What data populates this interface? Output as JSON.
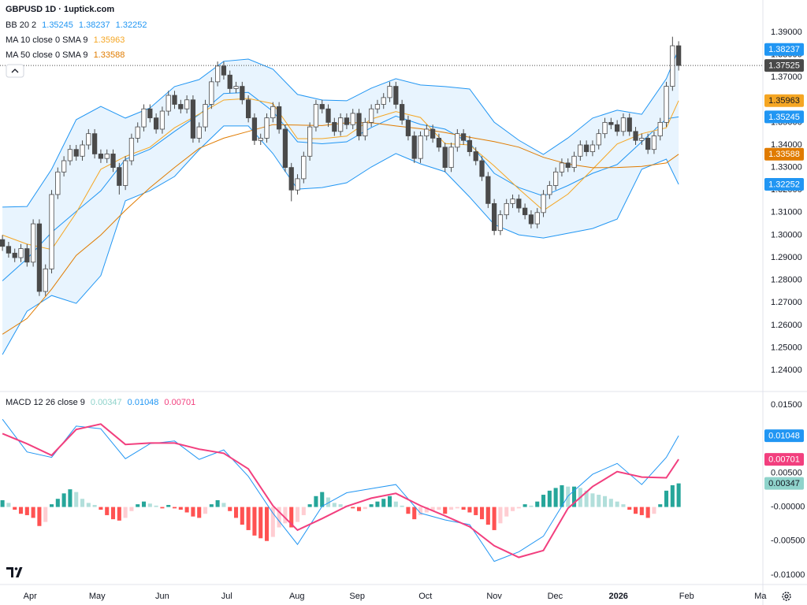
{
  "chart_data": [
    {
      "type": "candlestick",
      "title": "GBPUSD 1D · 1uptick.com",
      "open": [
        1.298,
        1.295,
        1.292,
        1.29,
        1.294,
        1.288,
        1.305,
        1.275,
        1.285,
        1.318,
        1.328,
        1.333,
        1.338,
        1.335,
        1.34,
        1.345,
        1.336,
        1.334,
        1.336,
        1.33,
        1.322,
        1.333,
        1.343,
        1.348,
        1.356,
        1.352,
        1.347,
        1.355,
        1.362,
        1.358,
        1.356,
        1.36,
        1.343,
        1.348,
        1.358,
        1.368,
        1.375,
        1.371,
        1.365,
        1.366,
        1.36,
        1.352,
        1.342,
        1.343,
        1.352,
        1.357,
        1.347,
        1.33,
        1.32,
        1.325,
        1.335,
        1.348,
        1.358,
        1.356,
        1.35,
        1.346,
        1.352,
        1.349,
        1.354,
        1.344,
        1.35,
        1.356,
        1.358,
        1.361,
        1.366,
        1.358,
        1.351,
        1.344,
        1.334,
        1.344,
        1.347,
        1.343,
        1.339,
        1.33,
        1.339,
        1.345,
        1.342,
        1.337,
        1.333,
        1.326,
        1.314,
        1.302,
        1.309,
        1.314,
        1.316,
        1.312,
        1.309,
        1.305,
        1.31,
        1.318,
        1.322,
        1.328,
        1.332,
        1.33,
        1.335,
        1.34,
        1.337,
        1.34,
        1.345,
        1.35,
        1.349,
        1.346,
        1.352,
        1.346,
        1.342,
        1.343,
        1.338,
        1.344,
        1.35,
        1.366,
        1.384
      ],
      "high": [
        1.3,
        1.297,
        1.294,
        1.296,
        1.296,
        1.307,
        1.307,
        1.287,
        1.32,
        1.33,
        1.335,
        1.34,
        1.34,
        1.342,
        1.347,
        1.347,
        1.338,
        1.338,
        1.338,
        1.332,
        1.335,
        1.345,
        1.35,
        1.358,
        1.358,
        1.354,
        1.357,
        1.364,
        1.364,
        1.36,
        1.362,
        1.362,
        1.35,
        1.36,
        1.37,
        1.377,
        1.377,
        1.373,
        1.368,
        1.368,
        1.362,
        1.354,
        1.345,
        1.354,
        1.359,
        1.359,
        1.349,
        1.332,
        1.327,
        1.337,
        1.35,
        1.36,
        1.36,
        1.358,
        1.352,
        1.354,
        1.354,
        1.356,
        1.356,
        1.352,
        1.358,
        1.36,
        1.363,
        1.368,
        1.368,
        1.36,
        1.353,
        1.346,
        1.346,
        1.349,
        1.349,
        1.345,
        1.341,
        1.341,
        1.347,
        1.347,
        1.344,
        1.339,
        1.335,
        1.328,
        1.316,
        1.311,
        1.316,
        1.318,
        1.318,
        1.314,
        1.311,
        1.312,
        1.32,
        1.324,
        1.33,
        1.334,
        1.334,
        1.337,
        1.342,
        1.342,
        1.342,
        1.347,
        1.352,
        1.352,
        1.351,
        1.354,
        1.354,
        1.348,
        1.345,
        1.345,
        1.346,
        1.352,
        1.368,
        1.388,
        1.386
      ],
      "low": [
        1.293,
        1.29,
        1.288,
        1.288,
        1.286,
        1.286,
        1.273,
        1.273,
        1.283,
        1.316,
        1.326,
        1.331,
        1.333,
        1.333,
        1.338,
        1.334,
        1.332,
        1.332,
        1.328,
        1.318,
        1.32,
        1.331,
        1.341,
        1.346,
        1.35,
        1.345,
        1.345,
        1.353,
        1.356,
        1.354,
        1.354,
        1.341,
        1.341,
        1.346,
        1.356,
        1.366,
        1.369,
        1.363,
        1.363,
        1.358,
        1.35,
        1.34,
        1.34,
        1.341,
        1.35,
        1.345,
        1.328,
        1.315,
        1.318,
        1.323,
        1.333,
        1.346,
        1.354,
        1.348,
        1.344,
        1.344,
        1.347,
        1.347,
        1.342,
        1.342,
        1.348,
        1.354,
        1.356,
        1.359,
        1.356,
        1.349,
        1.342,
        1.332,
        1.332,
        1.342,
        1.341,
        1.337,
        1.328,
        1.328,
        1.337,
        1.34,
        1.335,
        1.331,
        1.324,
        1.312,
        1.3,
        1.3,
        1.307,
        1.312,
        1.31,
        1.307,
        1.303,
        1.303,
        1.308,
        1.316,
        1.32,
        1.326,
        1.328,
        1.328,
        1.333,
        1.335,
        1.335,
        1.338,
        1.343,
        1.347,
        1.344,
        1.344,
        1.344,
        1.34,
        1.34,
        1.336,
        1.336,
        1.342,
        1.348,
        1.364,
        1.373
      ],
      "close": [
        1.295,
        1.292,
        1.29,
        1.294,
        1.288,
        1.305,
        1.275,
        1.285,
        1.318,
        1.328,
        1.333,
        1.338,
        1.335,
        1.34,
        1.345,
        1.336,
        1.334,
        1.336,
        1.33,
        1.322,
        1.333,
        1.343,
        1.348,
        1.356,
        1.352,
        1.347,
        1.355,
        1.362,
        1.358,
        1.356,
        1.36,
        1.343,
        1.348,
        1.358,
        1.368,
        1.375,
        1.371,
        1.365,
        1.366,
        1.36,
        1.352,
        1.342,
        1.343,
        1.352,
        1.357,
        1.347,
        1.33,
        1.32,
        1.325,
        1.335,
        1.348,
        1.358,
        1.356,
        1.35,
        1.346,
        1.352,
        1.349,
        1.354,
        1.344,
        1.35,
        1.356,
        1.358,
        1.361,
        1.366,
        1.358,
        1.351,
        1.344,
        1.334,
        1.344,
        1.347,
        1.343,
        1.339,
        1.33,
        1.339,
        1.345,
        1.342,
        1.337,
        1.333,
        1.326,
        1.314,
        1.302,
        1.309,
        1.314,
        1.316,
        1.312,
        1.309,
        1.305,
        1.31,
        1.318,
        1.322,
        1.328,
        1.332,
        1.33,
        1.335,
        1.34,
        1.337,
        1.34,
        1.345,
        1.35,
        1.349,
        1.346,
        1.352,
        1.346,
        1.342,
        1.343,
        1.338,
        1.344,
        1.35,
        1.366,
        1.384,
        1.37525
      ],
      "up_color": "#ffffff",
      "down_color": "#4a4a4a",
      "wick_color": "#4a4a4a",
      "last_price": 1.37525,
      "overlays": [
        {
          "name": "BB 20 2",
          "type": "band",
          "color": "#2196f3",
          "fill": "rgba(33,150,243,0.10)",
          "x": [
            0,
            4,
            8,
            12,
            16,
            20,
            24,
            28,
            32,
            36,
            40,
            44,
            48,
            52,
            56,
            60,
            64,
            68,
            72,
            76,
            80,
            84,
            88,
            92,
            96,
            100,
            104,
            108,
            110
          ],
          "basis": [
            1.2797,
            1.2895,
            1.3012,
            1.3105,
            1.3196,
            1.3336,
            1.3381,
            1.346,
            1.3535,
            1.3628,
            1.3633,
            1.3549,
            1.3414,
            1.3405,
            1.3414,
            1.3477,
            1.3528,
            1.3491,
            1.347,
            1.3409,
            1.3274,
            1.3211,
            1.3173,
            1.322,
            1.3274,
            1.3313,
            1.3414,
            1.3516,
            1.35245
          ],
          "upper": [
            1.3124,
            1.3127,
            1.3292,
            1.3512,
            1.3571,
            1.3519,
            1.3564,
            1.3659,
            1.369,
            1.3771,
            1.3781,
            1.3736,
            1.3624,
            1.3599,
            1.3596,
            1.3652,
            1.3694,
            1.3666,
            1.3659,
            1.3648,
            1.3501,
            1.3421,
            1.3358,
            1.3431,
            1.3519,
            1.3554,
            1.3536,
            1.3694,
            1.38237
          ],
          "lower": [
            1.247,
            1.2662,
            1.2732,
            1.2697,
            1.282,
            1.3152,
            1.3197,
            1.326,
            1.3379,
            1.3484,
            1.3484,
            1.3362,
            1.3204,
            1.3211,
            1.3232,
            1.3302,
            1.3362,
            1.3316,
            1.3281,
            1.3169,
            1.3047,
            1.3001,
            1.2987,
            1.3008,
            1.3029,
            1.3071,
            1.3292,
            1.3337,
            1.32252
          ],
          "legend_values": [
            1.35245,
            1.38237,
            1.32252
          ]
        },
        {
          "name": "MA 10 close 0 SMA 9",
          "type": "line",
          "color": "#f5a623",
          "x": [
            0,
            4,
            8,
            12,
            16,
            20,
            24,
            28,
            32,
            36,
            40,
            44,
            48,
            52,
            56,
            60,
            64,
            68,
            72,
            76,
            80,
            84,
            88,
            92,
            96,
            100,
            104,
            108,
            110
          ],
          "values": [
            1.3,
            1.296,
            1.2936,
            1.3099,
            1.3292,
            1.3349,
            1.339,
            1.3476,
            1.3537,
            1.3599,
            1.3606,
            1.3583,
            1.3428,
            1.3428,
            1.3439,
            1.3515,
            1.3548,
            1.3522,
            1.3406,
            1.34,
            1.3307,
            1.3205,
            1.3109,
            1.3182,
            1.3292,
            1.3404,
            1.345,
            1.3476,
            1.35963
          ],
          "legend_values": [
            1.35963
          ]
        },
        {
          "name": "MA 50 close 0 SMA 9",
          "type": "line",
          "color": "#e07b00",
          "x": [
            0,
            4,
            8,
            12,
            16,
            20,
            24,
            28,
            32,
            36,
            40,
            44,
            48,
            52,
            56,
            60,
            64,
            68,
            72,
            76,
            80,
            84,
            88,
            92,
            96,
            100,
            104,
            108,
            110
          ],
          "values": [
            1.256,
            1.263,
            1.276,
            1.291,
            1.3,
            1.311,
            1.321,
            1.33,
            1.3385,
            1.343,
            1.346,
            1.349,
            1.3488,
            1.3486,
            1.3498,
            1.3499,
            1.3484,
            1.3472,
            1.3455,
            1.3434,
            1.3415,
            1.339,
            1.3345,
            1.3315,
            1.3299,
            1.33,
            1.3305,
            1.332,
            1.33588
          ],
          "legend_values": [
            1.33588
          ]
        }
      ],
      "xlim": [
        -0.4,
        123.7
      ],
      "ylim": [
        1.2306,
        1.4043
      ],
      "yticks": [
        {
          "value": 1.24,
          "label": "1.24000"
        },
        {
          "value": 1.25,
          "label": "1.25000"
        },
        {
          "value": 1.26,
          "label": "1.26000"
        },
        {
          "value": 1.27,
          "label": "1.27000"
        },
        {
          "value": 1.28,
          "label": "1.28000"
        },
        {
          "value": 1.29,
          "label": "1.29000"
        },
        {
          "value": 1.3,
          "label": "1.30000"
        },
        {
          "value": 1.31,
          "label": "1.31000"
        },
        {
          "value": 1.32,
          "label": "1.32000"
        },
        {
          "value": 1.33,
          "label": "1.33000"
        },
        {
          "value": 1.34,
          "label": "1.34000"
        },
        {
          "value": 1.35,
          "label": "1.35000"
        },
        {
          "value": 1.36,
          "label": "1.36000"
        },
        {
          "value": 1.37,
          "label": "1.37000"
        },
        {
          "value": 1.38,
          "label": "1.38000"
        },
        {
          "value": 1.39,
          "label": "1.39000"
        }
      ],
      "grid": false
    },
    {
      "type": "macd",
      "title": "MACD 12 26 close 9",
      "x": [
        0,
        4,
        8,
        12,
        16,
        20,
        24,
        28,
        32,
        36,
        40,
        44,
        48,
        52,
        56,
        60,
        64,
        68,
        72,
        76,
        80,
        84,
        88,
        92,
        96,
        100,
        104,
        108,
        110
      ],
      "macd": {
        "color": "#2196f3",
        "values": [
          0.0129,
          0.0081,
          0.0073,
          0.0119,
          0.0115,
          0.0071,
          0.0093,
          0.0097,
          0.007,
          0.0084,
          0.0045,
          -0.0009,
          -0.0055,
          0.0001,
          0.0021,
          0.0027,
          0.0033,
          -0.0009,
          -0.0019,
          -0.0026,
          -0.008,
          -0.0066,
          -0.0043,
          0.0016,
          0.0048,
          0.0064,
          0.0033,
          0.0073,
          0.01048
        ]
      },
      "signal": {
        "color": "#f23f7e",
        "values": [
          0.0108,
          0.0093,
          0.0076,
          0.0114,
          0.0122,
          0.0092,
          0.0094,
          0.0094,
          0.0085,
          0.0079,
          0.0056,
          0.0002,
          -0.0034,
          -0.0017,
          0.0001,
          0.0013,
          0.002,
          0.0002,
          -0.0013,
          -0.0029,
          -0.0057,
          -0.0074,
          -0.0064,
          -0.0002,
          0.003,
          0.0052,
          0.0044,
          0.0043,
          0.00701
        ]
      },
      "histogram": {
        "color_rising_above": "#26a69a",
        "color_falling_above": "#b2dfdb",
        "color_rising_below": "#ffcdd2",
        "color_falling_below": "#ff5252",
        "values": [
          0.001,
          0.0006,
          -0.0004,
          -0.001,
          -0.0012,
          -0.0016,
          -0.0028,
          -0.0022,
          0.0004,
          0.0012,
          0.002,
          0.0026,
          0.0022,
          0.0012,
          0.0006,
          0.0003,
          -0.0004,
          -0.0012,
          -0.0018,
          -0.002,
          -0.0016,
          -0.0006,
          0.0004,
          0.0008,
          0.0005,
          0.0002,
          -0.0002,
          0.0003,
          -0.0002,
          -0.0004,
          -0.0008,
          -0.0014,
          -0.0016,
          -0.001,
          0.0004,
          0.001,
          0.0006,
          -0.0006,
          -0.0016,
          -0.0026,
          -0.0034,
          -0.0042,
          -0.0046,
          -0.005,
          -0.0044,
          -0.003,
          -0.0024,
          -0.003,
          -0.0022,
          -0.0012,
          0.0004,
          0.0016,
          0.0022,
          0.0014,
          0.0006,
          0.0004,
          0.0002,
          -0.0002,
          -0.0006,
          -0.0003,
          0.0004,
          0.0008,
          0.0012,
          0.0016,
          0.0008,
          0.0002,
          -0.001,
          -0.0018,
          -0.0012,
          -0.0008,
          -0.0006,
          -0.0004,
          -0.001,
          -0.0004,
          -0.0002,
          -0.0004,
          -0.0008,
          -0.0012,
          -0.0018,
          -0.0026,
          -0.0034,
          -0.0024,
          -0.0014,
          -0.0006,
          -0.0002,
          0.0004,
          0.0002,
          0.0008,
          0.0018,
          0.0024,
          0.0028,
          0.0032,
          0.003,
          0.003,
          0.0028,
          0.0024,
          0.002,
          0.0018,
          0.0016,
          0.0012,
          0.0008,
          0.0004,
          -0.0004,
          -0.001,
          -0.0012,
          -0.0016,
          -0.001,
          0.0004,
          0.0024,
          0.0032,
          0.00347
        ]
      },
      "legend_values": [
        0.00347,
        0.01048,
        0.00701
      ],
      "legend_colors": [
        "#8fd3cb",
        "#2196f3",
        "#f23f7e"
      ],
      "xlim": [
        -0.4,
        123.7
      ],
      "ylim": [
        -0.0114,
        0.01698
      ],
      "yticks": [
        {
          "value": 0.015,
          "label": "0.01500"
        },
        {
          "value": 0.01,
          "label": "0.01000"
        },
        {
          "value": 0.005,
          "label": "0.00500"
        },
        {
          "value": 0,
          "label": "-0.00000"
        },
        {
          "value": -0.005,
          "label": "-0.00500"
        },
        {
          "value": -0.01,
          "label": "-0.01000"
        }
      ],
      "xticks": [
        {
          "value": 4.5,
          "label": "Apr"
        },
        {
          "value": 15.4,
          "label": "May"
        },
        {
          "value": 26,
          "label": "Jun"
        },
        {
          "value": 36.5,
          "label": "Jul"
        },
        {
          "value": 47.9,
          "label": "Aug"
        },
        {
          "value": 57.7,
          "label": "Sep"
        },
        {
          "value": 68.8,
          "label": "Oct"
        },
        {
          "value": 80,
          "label": "Nov"
        },
        {
          "value": 89.9,
          "label": "Dec"
        },
        {
          "value": 100.2,
          "label": "2026"
        },
        {
          "value": 111.3,
          "label": "Feb"
        },
        {
          "value": 123.3,
          "label": "Ma"
        }
      ],
      "grid": false
    }
  ]
}
